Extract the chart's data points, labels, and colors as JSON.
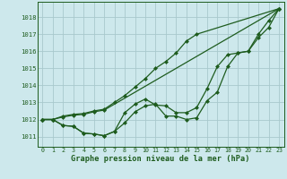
{
  "xlabel": "Graphe pression niveau de la mer (hPa)",
  "bg_color": "#cde8ec",
  "grid_color": "#a8c8cc",
  "line_color": "#1e5c1e",
  "xlim": [
    -0.5,
    23.5
  ],
  "ylim": [
    1010.4,
    1018.9
  ],
  "yticks": [
    1011,
    1012,
    1013,
    1014,
    1015,
    1016,
    1017,
    1018
  ],
  "x_ticks": [
    0,
    1,
    2,
    3,
    4,
    5,
    6,
    7,
    8,
    9,
    10,
    11,
    12,
    13,
    14,
    15,
    16,
    17,
    18,
    19,
    20,
    21,
    22,
    23
  ],
  "series1_x": [
    0,
    1,
    2,
    3,
    4,
    5,
    6,
    7,
    8,
    9,
    10,
    11,
    12,
    13,
    14,
    15,
    16,
    17,
    18,
    19,
    20,
    21,
    22,
    23
  ],
  "series1_y": [
    1012.0,
    1012.0,
    1011.65,
    1011.6,
    1011.2,
    1011.15,
    1011.05,
    1011.3,
    1011.8,
    1012.45,
    1012.8,
    1012.9,
    1012.2,
    1012.2,
    1012.0,
    1012.1,
    1013.1,
    1013.6,
    1015.1,
    1015.9,
    1016.0,
    1016.8,
    1017.4,
    1018.5
  ],
  "series2_x": [
    0,
    1,
    2,
    3,
    4,
    5,
    6,
    7,
    8,
    9,
    10,
    11,
    12,
    13,
    14,
    15,
    16,
    17,
    18,
    19,
    20,
    21,
    22,
    23
  ],
  "series2_y": [
    1012.0,
    1012.0,
    1011.65,
    1011.6,
    1011.2,
    1011.15,
    1011.05,
    1011.3,
    1012.4,
    1012.9,
    1013.2,
    1012.85,
    1012.8,
    1012.4,
    1012.4,
    1012.7,
    1013.8,
    1015.1,
    1015.8,
    1015.9,
    1016.0,
    1017.0,
    1017.8,
    1018.5
  ],
  "series3_x": [
    0,
    1,
    2,
    3,
    4,
    5,
    6,
    7,
    8,
    9,
    10,
    11,
    12,
    13,
    14,
    15,
    23
  ],
  "series3_y": [
    1012.0,
    1012.0,
    1012.2,
    1012.3,
    1012.35,
    1012.5,
    1012.6,
    1013.0,
    1013.4,
    1013.9,
    1014.4,
    1015.0,
    1015.4,
    1015.9,
    1016.6,
    1017.0,
    1018.5
  ],
  "series4_x": [
    0,
    1,
    2,
    3,
    4,
    5,
    6,
    23
  ],
  "series4_y": [
    1012.0,
    1012.0,
    1012.15,
    1012.25,
    1012.3,
    1012.45,
    1012.55,
    1018.5
  ],
  "markersize": 2.5,
  "lw": 0.9
}
